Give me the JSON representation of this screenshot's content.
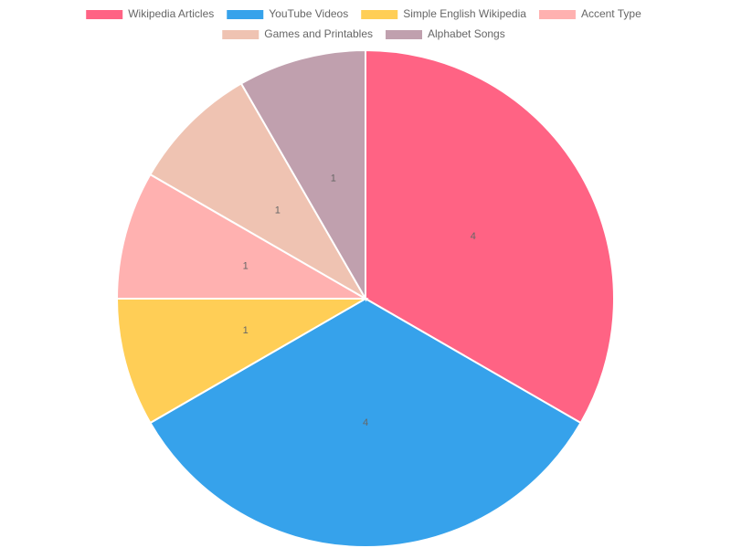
{
  "chart_data": {
    "type": "pie",
    "categories": [
      "Wikipedia Articles",
      "YouTube Videos",
      "Simple English Wikipedia",
      "Accent Type",
      "Games and Printables",
      "Alphabet Songs"
    ],
    "values": [
      4,
      4,
      1,
      1,
      1,
      1
    ],
    "colors": [
      "#ff6384",
      "#36a2eb",
      "#ffce56",
      "#ffb1b0",
      "#efc3b2",
      "#c0a0ae"
    ],
    "legend": "top"
  }
}
